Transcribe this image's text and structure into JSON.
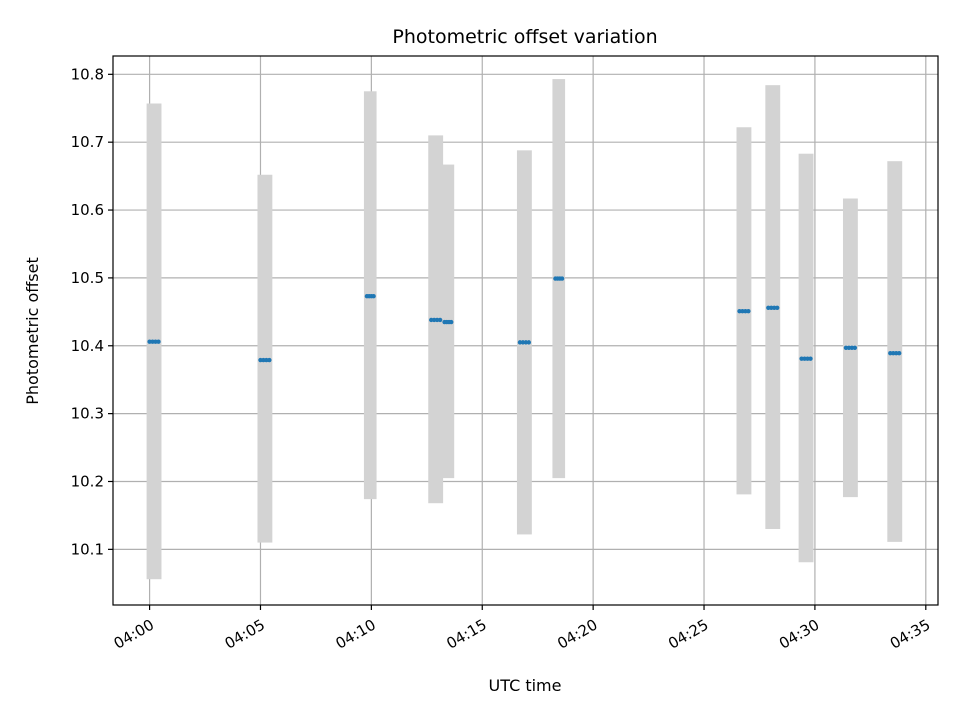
{
  "chart_data": {
    "type": "scatter",
    "title": "Photometric offset variation",
    "xlabel": "UTC time",
    "ylabel": "Photometric offset",
    "xlim_minutes": [
      -1.65,
      35.55
    ],
    "ylim": [
      10.018,
      10.827
    ],
    "x_ticks": [
      {
        "minute": 0,
        "label": "04:00"
      },
      {
        "minute": 5,
        "label": "04:05"
      },
      {
        "minute": 10,
        "label": "04:10"
      },
      {
        "minute": 15,
        "label": "04:15"
      },
      {
        "minute": 20,
        "label": "04:20"
      },
      {
        "minute": 25,
        "label": "04:25"
      },
      {
        "minute": 30,
        "label": "04:30"
      },
      {
        "minute": 35,
        "label": "04:35"
      }
    ],
    "y_ticks": [
      {
        "value": 10.1,
        "label": "10.1"
      },
      {
        "value": 10.2,
        "label": "10.2"
      },
      {
        "value": 10.3,
        "label": "10.3"
      },
      {
        "value": 10.4,
        "label": "10.4"
      },
      {
        "value": 10.5,
        "label": "10.5"
      },
      {
        "value": 10.6,
        "label": "10.6"
      },
      {
        "value": 10.7,
        "label": "10.7"
      },
      {
        "value": 10.8,
        "label": "10.8"
      }
    ],
    "grid": true,
    "colors": {
      "points": "#1f77b4",
      "ranges": "#d3d3d3",
      "grid": "#b0b0b0",
      "axes": "#000000"
    },
    "groups": [
      {
        "x_start": 0.0,
        "x_end": 0.4,
        "value": 10.406,
        "range": [
          10.056,
          10.757
        ]
      },
      {
        "x_start": 5.0,
        "x_end": 5.4,
        "value": 10.379,
        "range": [
          10.11,
          10.652
        ]
      },
      {
        "x_start": 9.8,
        "x_end": 10.1,
        "value": 10.473,
        "range": [
          10.174,
          10.775
        ]
      },
      {
        "x_start": 12.7,
        "x_end": 13.1,
        "value": 10.438,
        "range": [
          10.168,
          10.71
        ]
      },
      {
        "x_start": 13.3,
        "x_end": 13.6,
        "value": 10.435,
        "range": [
          10.205,
          10.667
        ]
      },
      {
        "x_start": 16.7,
        "x_end": 17.1,
        "value": 10.405,
        "range": [
          10.122,
          10.688
        ]
      },
      {
        "x_start": 18.3,
        "x_end": 18.6,
        "value": 10.499,
        "range": [
          10.205,
          10.793
        ]
      },
      {
        "x_start": 26.6,
        "x_end": 27.0,
        "value": 10.451,
        "range": [
          10.181,
          10.722
        ]
      },
      {
        "x_start": 27.9,
        "x_end": 28.3,
        "value": 10.456,
        "range": [
          10.13,
          10.784
        ]
      },
      {
        "x_start": 29.4,
        "x_end": 29.8,
        "value": 10.381,
        "range": [
          10.081,
          10.683
        ]
      },
      {
        "x_start": 31.4,
        "x_end": 31.8,
        "value": 10.397,
        "range": [
          10.177,
          10.617
        ]
      },
      {
        "x_start": 33.4,
        "x_end": 33.8,
        "value": 10.389,
        "range": [
          10.111,
          10.672
        ]
      }
    ]
  }
}
